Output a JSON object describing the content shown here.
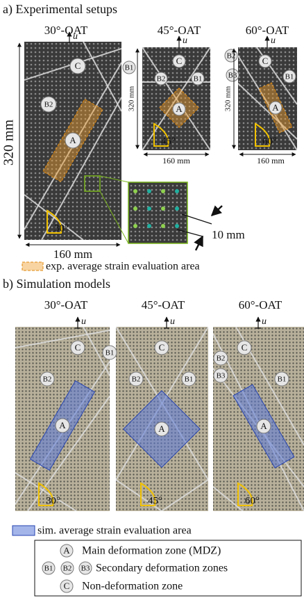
{
  "section_a": {
    "title": "a) Experimental setups",
    "load": "u",
    "panels": [
      {
        "label": "30°-OAT",
        "height": "320 mm",
        "width": "160 mm",
        "angle": "30°"
      },
      {
        "label": "45°-OAT",
        "height": "320 mm",
        "width": "160 mm",
        "angle": "45°"
      },
      {
        "label": "60°-OAT",
        "height": "320 mm",
        "width": "160 mm",
        "angle": "60°"
      }
    ],
    "scale": "10 mm",
    "legend": "exp. average strain evaluation area"
  },
  "section_b": {
    "title": "b) Simulation models",
    "load": "u",
    "panels": [
      {
        "label": "30°-OAT",
        "angle": "30°"
      },
      {
        "label": "45°-OAT",
        "angle": "45°"
      },
      {
        "label": "60°-OAT",
        "angle": "60°"
      }
    ],
    "legend": "sim. average strain evaluation area"
  },
  "zones": {
    "A": "A",
    "B1": "B1",
    "B2": "B2",
    "B3": "B3",
    "C": "C"
  },
  "key": {
    "main": "Main deformation zone (MDZ)",
    "secondary": "Secondary deformation zones",
    "non": "Non-deformation zone"
  }
}
